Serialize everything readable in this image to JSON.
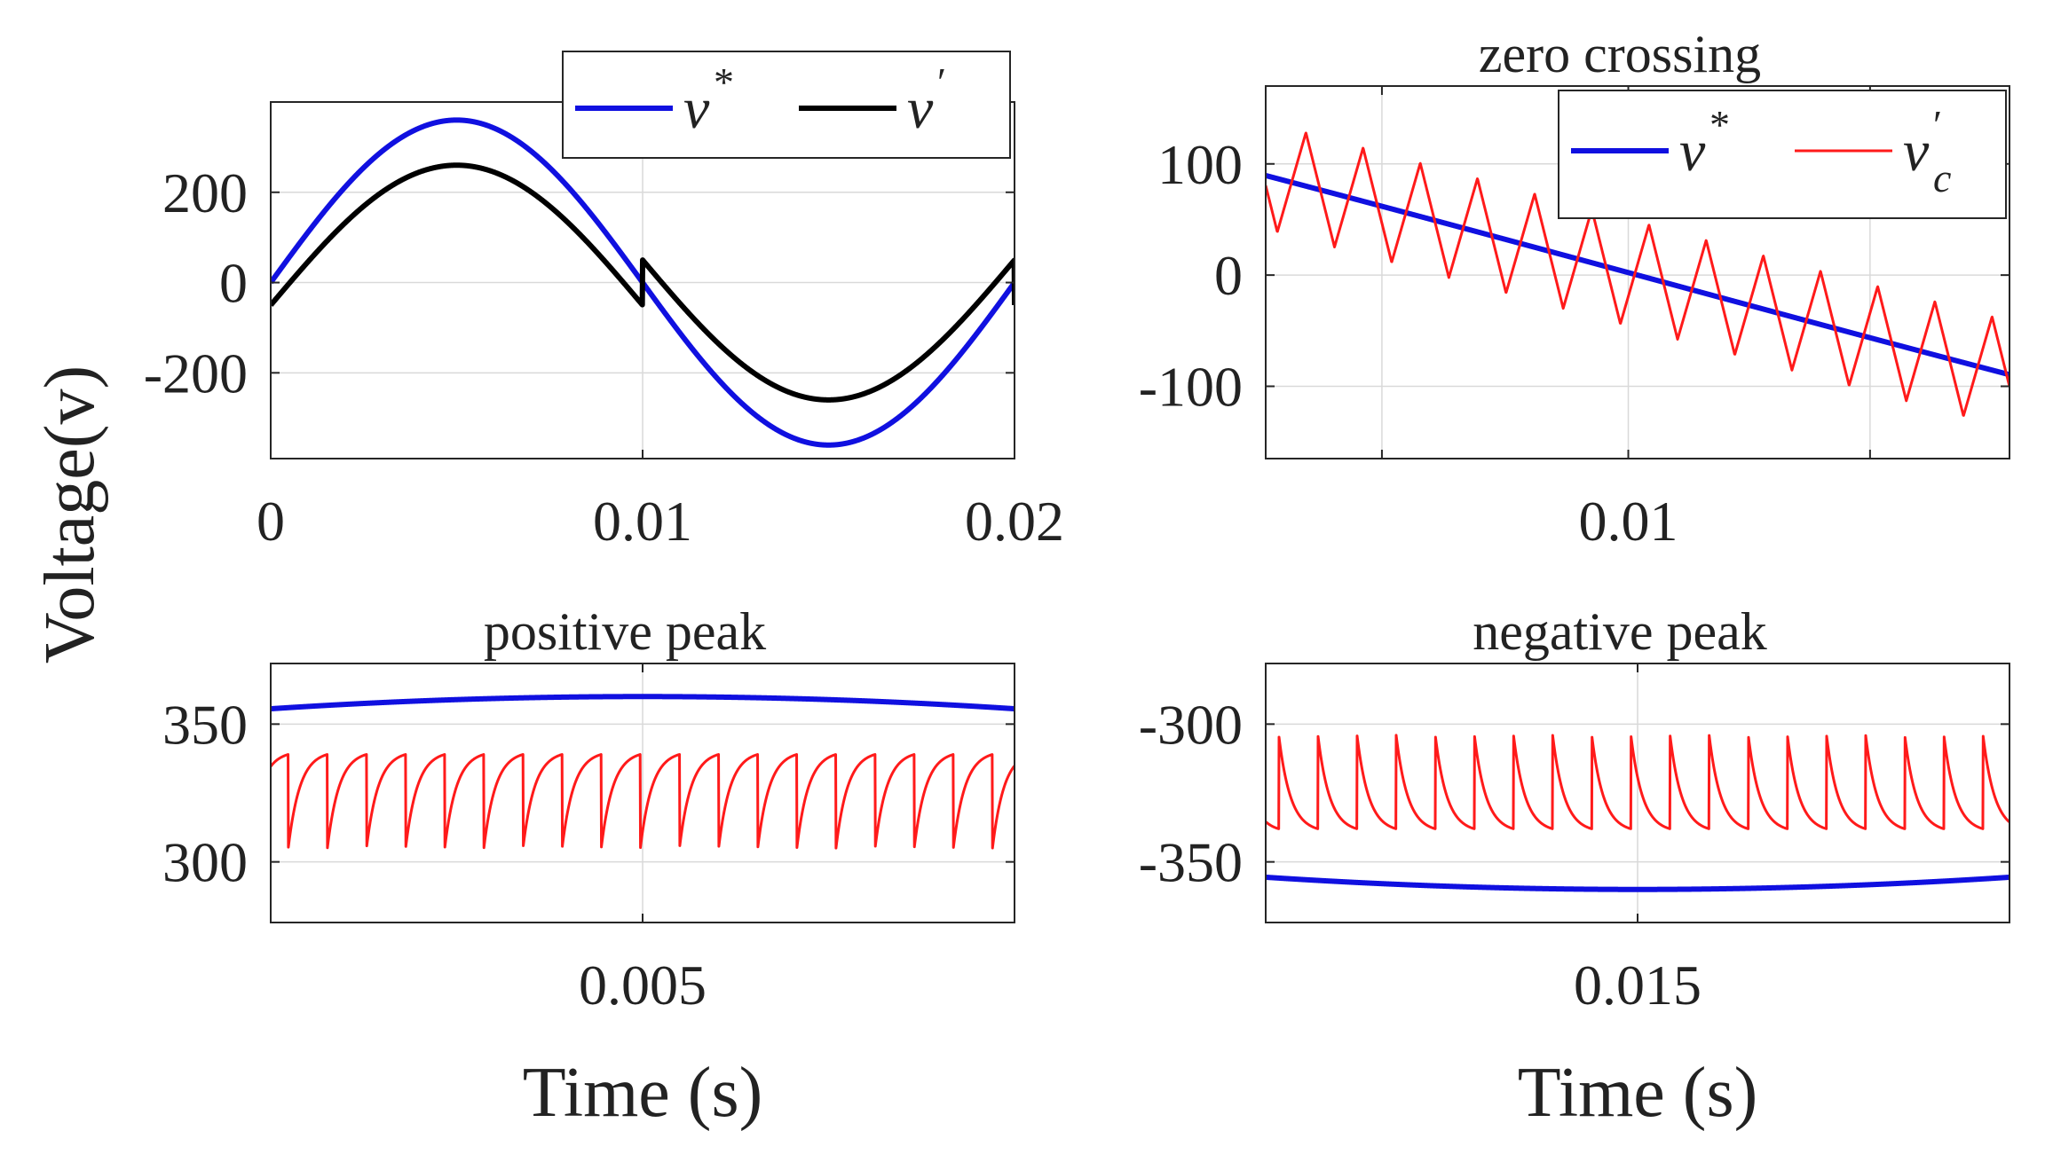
{
  "figure": {
    "ylabel": "Voltage(v)"
  },
  "chart_data": [
    {
      "id": "full",
      "type": "line",
      "title": "",
      "xlabel": "",
      "ylabel": "Voltage(v)",
      "xlim": [
        0,
        0.02
      ],
      "ylim": [
        -390,
        400
      ],
      "xticks": [
        0,
        0.01,
        0.02
      ],
      "xtick_labels": [
        "0",
        "0.01",
        "0.02"
      ],
      "yticks": [
        -200,
        0,
        200
      ],
      "ytick_labels": [
        "-200",
        "0",
        "200"
      ],
      "grid": true,
      "legend": {
        "placement": "top-right",
        "entries": [
          {
            "name": "v",
            "sup": "*",
            "sub": "",
            "color": "#1010e0"
          },
          {
            "name": "v",
            "sup": "′",
            "sub": "",
            "color": "#000000"
          }
        ]
      },
      "series": [
        {
          "name": "v*",
          "color": "#1010e0",
          "kind": "sine",
          "amplitude": 360,
          "frequency": 50,
          "phase": 0,
          "offset": 0
        },
        {
          "name": "v'",
          "color": "#000000",
          "kind": "sine_shift",
          "amplitude": 310,
          "frequency": 50,
          "phase": 0,
          "shift": 50
        }
      ]
    },
    {
      "id": "zero-crossing",
      "type": "line",
      "title": "zero crossing",
      "xlabel": "",
      "xlim": [
        0.0092,
        0.0108
      ],
      "ylim": [
        -165,
        170
      ],
      "xticks": [
        0.00945,
        0.00998,
        0.0105
      ],
      "xtick_labels": [
        "",
        "0.01",
        ""
      ],
      "yticks": [
        -100,
        0,
        100
      ],
      "ytick_labels": [
        "-100",
        "0",
        "100"
      ],
      "grid": true,
      "legend": {
        "placement": "top-right",
        "entries": [
          {
            "name": "v",
            "sup": "*",
            "sub": "",
            "color": "#1010e0"
          },
          {
            "name": "v",
            "sup": "′",
            "sub": "c",
            "color": "#ff1a1a"
          }
        ]
      },
      "series": [
        {
          "name": "v*",
          "color": "#1010e0",
          "kind": "sine",
          "amplitude": 360,
          "frequency": 50,
          "phase": 0,
          "offset": 0
        },
        {
          "name": "v'_c",
          "color": "#ff1a1a",
          "kind": "triangle",
          "amplitude": 360,
          "frequency": 50,
          "phase": 0,
          "ripple": 48,
          "period": 0.000123,
          "offset": 0
        }
      ]
    },
    {
      "id": "positive-peak",
      "type": "line",
      "title": "positive peak",
      "xlabel": "Time (s)",
      "xlim": [
        0.0045,
        0.0055
      ],
      "ylim": [
        278,
        372
      ],
      "xticks": [
        0.005
      ],
      "xtick_labels": [
        "0.005"
      ],
      "yticks": [
        300,
        350
      ],
      "ytick_labels": [
        "300",
        "350"
      ],
      "grid": true,
      "series": [
        {
          "name": "v*",
          "color": "#1010e0",
          "kind": "sine",
          "amplitude": 360,
          "frequency": 50,
          "phase": 0,
          "offset": 0
        },
        {
          "name": "v'_c",
          "color": "#ff1a1a",
          "kind": "sawtooth_rise",
          "low": 305,
          "high": 339,
          "period": 5.26e-05,
          "tau": 0.3
        }
      ]
    },
    {
      "id": "negative-peak",
      "type": "line",
      "title": "negative peak",
      "xlabel": "Time (s)",
      "xlim": [
        0.0145,
        0.0155
      ],
      "ylim": [
        -372,
        -278
      ],
      "xticks": [
        0.015
      ],
      "xtick_labels": [
        "0.015"
      ],
      "yticks": [
        -350,
        -300
      ],
      "ytick_labels": [
        "-350",
        "-300"
      ],
      "grid": true,
      "series": [
        {
          "name": "v*",
          "color": "#1010e0",
          "kind": "sine",
          "amplitude": 360,
          "frequency": 50,
          "phase": 0,
          "offset": 0
        },
        {
          "name": "v'_c",
          "color": "#ff1a1a",
          "kind": "sawtooth_fall",
          "low": -338,
          "high": -304,
          "period": 5.26e-05,
          "tau": 0.3
        }
      ]
    }
  ]
}
